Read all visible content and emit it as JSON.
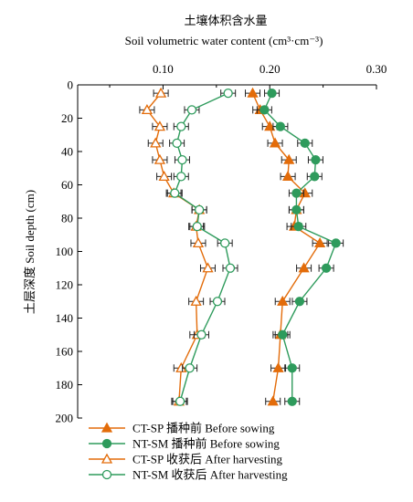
{
  "chart_data": {
    "type": "line",
    "title_cn": "土壤体积含水量",
    "title_en": "Soil volumetric water content (cm³·cm⁻³)",
    "ylabel": "土层深度 Soil depth (cm)",
    "x_axis_position": "top",
    "y_inverted": true,
    "xlim": [
      0.02,
      0.3
    ],
    "ylim": [
      0,
      200
    ],
    "x_ticks": [
      0.1,
      0.2,
      0.3
    ],
    "x_tick_labels": [
      "0.10",
      "0.20",
      "0.30"
    ],
    "y_ticks": [
      0,
      20,
      40,
      60,
      80,
      100,
      120,
      140,
      160,
      180,
      200
    ],
    "y_tick_labels": [
      "0",
      "20",
      "40",
      "60",
      "80",
      "100",
      "120",
      "140",
      "160",
      "180",
      "200"
    ],
    "grid": false,
    "legend_position": "bottom-left",
    "depths": [
      5,
      15,
      25,
      35,
      45,
      55,
      65,
      75,
      85,
      95,
      110,
      130,
      150,
      170,
      190
    ],
    "series": [
      {
        "name": "CT-SP 播种前 Before sowing",
        "color": "#E36C0A",
        "marker": "triangle",
        "filled": true,
        "values": [
          0.184,
          0.191,
          0.2,
          0.205,
          0.218,
          0.217,
          0.233,
          0.225,
          0.223,
          0.247,
          0.232,
          0.212,
          0.21,
          0.208,
          0.203
        ]
      },
      {
        "name": "NT-SM 播种前 Before sowing",
        "color": "#2E9B5C",
        "marker": "circle",
        "filled": true,
        "values": [
          0.202,
          0.195,
          0.21,
          0.233,
          0.243,
          0.242,
          0.225,
          0.225,
          0.227,
          0.262,
          0.253,
          0.228,
          0.212,
          0.221,
          0.221
        ]
      },
      {
        "name": "CT-SP 收获后 After harvesting",
        "color": "#E36C0A",
        "marker": "triangle",
        "filled": false,
        "values": [
          0.098,
          0.085,
          0.097,
          0.093,
          0.097,
          0.101,
          0.11,
          0.134,
          0.131,
          0.133,
          0.142,
          0.131,
          0.132,
          0.117,
          0.115
        ]
      },
      {
        "name": "NT-SM 收获后 After harvesting",
        "color": "#2E9B5C",
        "marker": "circle",
        "filled": false,
        "values": [
          0.161,
          0.127,
          0.117,
          0.113,
          0.118,
          0.117,
          0.111,
          0.134,
          0.132,
          0.158,
          0.163,
          0.151,
          0.136,
          0.125,
          0.116
        ]
      }
    ]
  }
}
